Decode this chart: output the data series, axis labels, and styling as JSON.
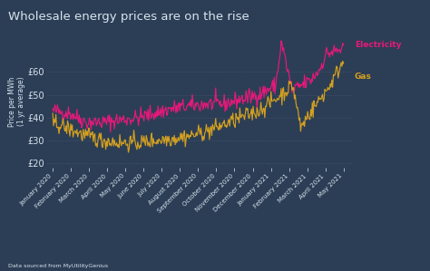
{
  "title": "Wholesale energy prices are on the rise",
  "ylabel": "Price per MWh\n(1 yr average)",
  "source": "Data sourced from MyUtilityGenius",
  "bg_color": "#2c3e55",
  "grid_color": "#4a5d75",
  "text_color": "#d8e4f0",
  "elec_color": "#e8187a",
  "gas_color": "#d4a020",
  "ylim": [
    18,
    76
  ],
  "yticks": [
    20,
    30,
    40,
    50,
    60
  ],
  "months": [
    "January 2020",
    "February 2020",
    "March 2020",
    "April 2020",
    "May 2020",
    "June 2020",
    "July 2020",
    "August 2020",
    "September 2020",
    "October 2020",
    "November 2020",
    "December 2020",
    "January 2021",
    "February 2021",
    "March 2021",
    "April 2021",
    "May 2021"
  ]
}
